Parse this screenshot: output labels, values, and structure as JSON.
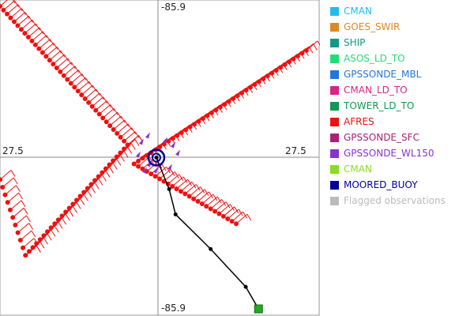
{
  "chart_data": {
    "type": "scatter",
    "tick_labels": {
      "top": "-85.9",
      "bottom": "-85.9",
      "left": "27.5",
      "right": "27.5"
    },
    "grid": true,
    "legend_placement": "right",
    "legend": [
      {
        "name": "CMAN",
        "color": "#22bbee"
      },
      {
        "name": "GOES_SWIR",
        "color": "#dd8822"
      },
      {
        "name": "SHIP",
        "color": "#119988"
      },
      {
        "name": "ASOS_LD_TO",
        "color": "#22dd77"
      },
      {
        "name": "GPSSONDE_MBL",
        "color": "#2277dd"
      },
      {
        "name": "CMAN_LD_TO",
        "color": "#dd2288"
      },
      {
        "name": "TOWER_LD_TO",
        "color": "#119955"
      },
      {
        "name": "AFRES",
        "color": "#ee1111"
      },
      {
        "name": "GPSSONDE_SFC",
        "color": "#aa2277"
      },
      {
        "name": "GPSSONDE_WL150",
        "color": "#8833cc"
      },
      {
        "name": "CMAN",
        "color": "#88dd22"
      },
      {
        "name": "MOORED_BUOY",
        "color": "#000099"
      },
      {
        "name": "Flagged observations",
        "color": "#bbbbbb"
      }
    ],
    "track_legs": [
      {
        "series": "AFRES",
        "from": [
          0.0,
          0.02
        ],
        "to": [
          0.4,
          0.46
        ],
        "count": 36
      },
      {
        "series": "AFRES",
        "from": [
          0.4,
          0.46
        ],
        "to": [
          0.08,
          0.81
        ],
        "count": 28
      },
      {
        "series": "AFRES",
        "from": [
          0.0,
          0.57
        ],
        "to": [
          0.08,
          0.81
        ],
        "count": 10
      },
      {
        "series": "AFRES",
        "from": [
          0.42,
          0.52
        ],
        "to": [
          0.96,
          0.16
        ],
        "count": 40
      },
      {
        "series": "AFRES",
        "from": [
          0.42,
          0.52
        ],
        "to": [
          0.74,
          0.71
        ],
        "count": 24
      }
    ],
    "moored_buoy_track": [
      [
        0.49,
        0.5
      ],
      [
        0.53,
        0.6
      ],
      [
        0.55,
        0.68
      ],
      [
        0.66,
        0.79
      ],
      [
        0.77,
        0.91
      ],
      [
        0.81,
        0.98
      ]
    ],
    "moored_buoy_marker": [
      0.49,
      0.5
    ],
    "moored_buoy_end": [
      0.81,
      0.98
    ]
  }
}
